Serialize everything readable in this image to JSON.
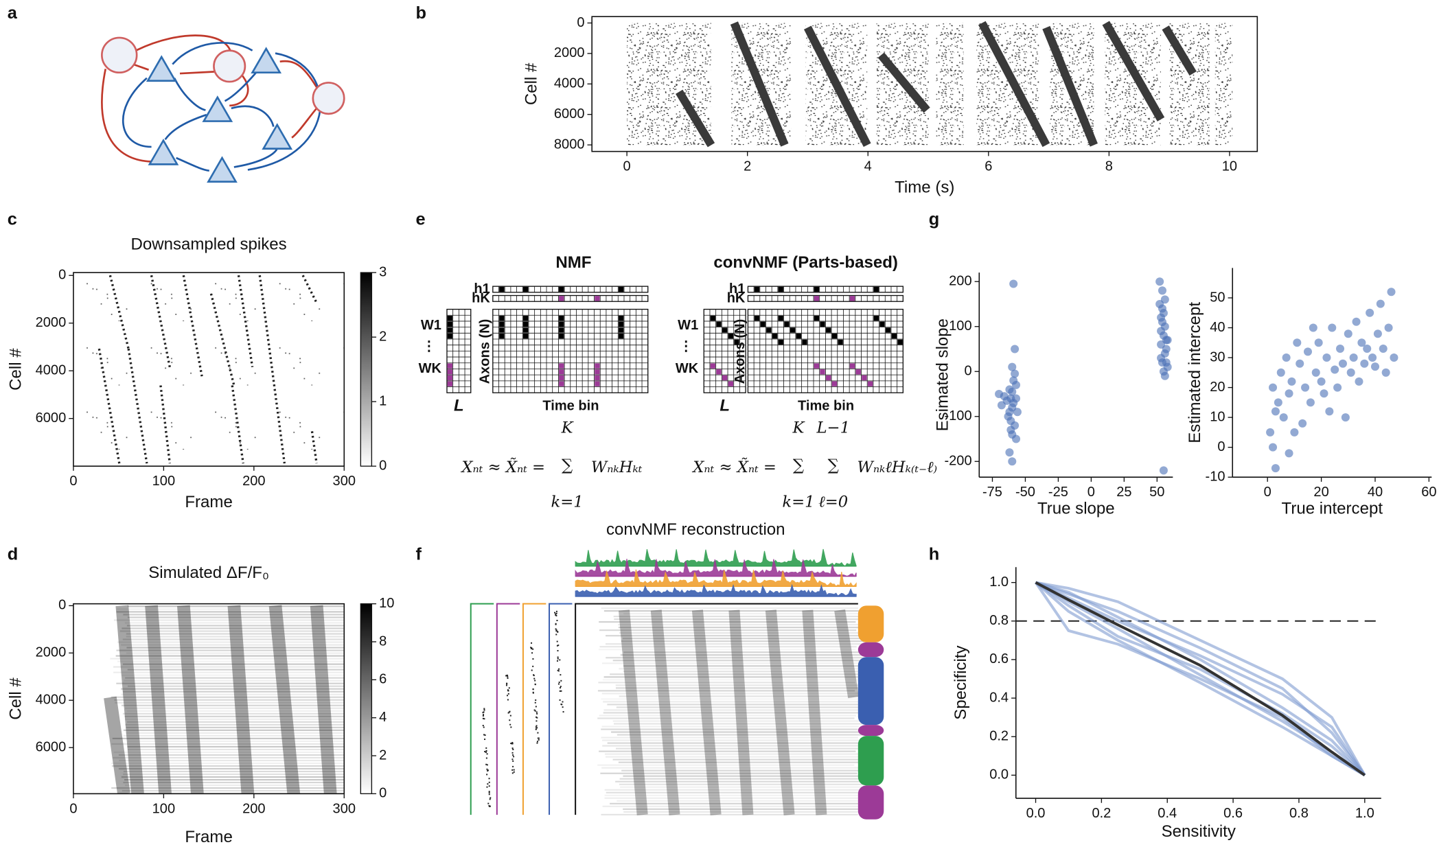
{
  "panel_labels": [
    "a",
    "b",
    "c",
    "d",
    "e",
    "f",
    "g",
    "h"
  ],
  "diagram_e": {
    "titles": [
      "NMF",
      "convNMF (Parts-based)"
    ],
    "h_labels": [
      "h1",
      "hK"
    ],
    "w_labels": [
      "W1",
      "⋮",
      "WK"
    ],
    "width_label": "L",
    "y_label": "Axons (N)",
    "x_label": "Time bin",
    "sum": "∑",
    "formulas": [
      {
        "lhs": "Xₙₜ ≈ X̃ₙₜ =",
        "upper": [
          "K"
        ],
        "lower": [
          "k=1"
        ],
        "rhs": "WₙₖHₖₜ"
      },
      {
        "lhs": "Xₙₜ ≈ X̃ₙₜ =",
        "upper": [
          "K",
          "L−1"
        ],
        "lower": [
          "k=1",
          "ℓ=0"
        ],
        "rhs": "WₙₖℓHₖ₍ₜ₋ℓ₎"
      }
    ]
  },
  "diagram_f": {
    "title": "convNMF reconstruction"
  },
  "chart_data": [
    {
      "type": "raster",
      "xlabel": "Time (s)",
      "ylabel": "Cell #",
      "xlim": [
        -0.58,
        10.46
      ],
      "ylim": [
        -420,
        8430
      ],
      "y_inverted": true,
      "xticks": [
        0,
        2,
        4,
        6,
        8,
        10
      ],
      "yticks": [
        0,
        2000,
        4000,
        6000,
        8000
      ]
    },
    {
      "type": "raster",
      "title": "Downsampled spikes",
      "xlabel": "Frame",
      "ylabel": "Cell #",
      "xlim": [
        0,
        300
      ],
      "ylim": [
        -120,
        8000
      ],
      "y_inverted": true,
      "xticks": [
        0,
        100,
        200,
        300
      ],
      "yticks": [
        0,
        2000,
        4000,
        6000
      ],
      "colorbar": {
        "lim": [
          0,
          3
        ],
        "ticks": [
          0,
          1,
          2,
          3
        ]
      }
    },
    {
      "type": "raster",
      "title": "Simulated ΔF/F₀",
      "xlabel": "Frame",
      "ylabel": "Cell #",
      "xlim": [
        0,
        300
      ],
      "ylim": [
        -80,
        7950
      ],
      "y_inverted": true,
      "xticks": [
        0,
        100,
        200,
        300
      ],
      "yticks": [
        0,
        2000,
        4000,
        6000
      ],
      "colorbar": {
        "lim": [
          0,
          10
        ],
        "ticks": [
          0,
          2,
          4,
          6,
          8,
          10
        ]
      }
    },
    {
      "type": "scatter",
      "xlabel": "True slope",
      "ylabel": "Esimated slope",
      "color": "#4a6fb5",
      "xlim": [
        -85,
        62
      ],
      "ylim": [
        -235,
        220
      ],
      "xticks": [
        -75,
        -50,
        -25,
        0,
        25,
        50
      ],
      "yticks": [
        -200,
        -100,
        0,
        100,
        200
      ],
      "x": [
        -62,
        -60,
        -58,
        -61,
        -59,
        -57,
        -63,
        -60,
        -58,
        -60,
        -62,
        -56,
        -59,
        -61,
        -57,
        -64,
        -66,
        -70,
        -68,
        -60,
        -58,
        -62,
        -59,
        -57,
        -61,
        -60,
        52,
        54,
        55,
        53,
        56,
        57,
        55,
        53,
        54,
        56,
        57,
        52,
        55,
        53,
        58,
        56,
        54,
        57,
        55,
        53,
        56,
        58,
        54
      ],
      "values": [
        -40,
        -80,
        -120,
        -60,
        -20,
        -150,
        -100,
        10,
        50,
        -200,
        -180,
        -90,
        -70,
        -110,
        -30,
        -65,
        -55,
        -50,
        -75,
        -140,
        -5,
        -90,
        195,
        -60,
        -130,
        -45,
        150,
        110,
        80,
        60,
        40,
        20,
        0,
        120,
        180,
        100,
        70,
        200,
        130,
        90,
        10,
        -10,
        140,
        50,
        -220,
        30,
        160,
        70,
        20
      ]
    },
    {
      "type": "scatter",
      "xlabel": "True intercept",
      "ylabel": "Estimated intercept",
      "color": "#4a6fb5",
      "xlim": [
        -13,
        61
      ],
      "ylim": [
        -10,
        60
      ],
      "xticks": [
        0,
        20,
        40,
        60
      ],
      "yticks": [
        -10,
        0,
        10,
        20,
        30,
        40,
        50
      ],
      "x": [
        1,
        2,
        3,
        4,
        5,
        6,
        7,
        8,
        3,
        9,
        10,
        12,
        14,
        15,
        16,
        18,
        19,
        20,
        21,
        22,
        24,
        25,
        26,
        27,
        28,
        29,
        30,
        31,
        32,
        33,
        34,
        35,
        36,
        37,
        38,
        39,
        40,
        41,
        42,
        43,
        44,
        45,
        46,
        47,
        2,
        8,
        13,
        17,
        23,
        11
      ],
      "values": [
        5,
        20,
        -7,
        15,
        25,
        10,
        30,
        18,
        12,
        22,
        5,
        28,
        20,
        32,
        15,
        25,
        35,
        22,
        18,
        30,
        40,
        26,
        20,
        33,
        28,
        10,
        38,
        25,
        30,
        42,
        22,
        35,
        28,
        33,
        45,
        30,
        27,
        38,
        48,
        33,
        25,
        40,
        52,
        30,
        0,
        -2,
        8,
        40,
        12,
        35
      ]
    },
    {
      "type": "line",
      "xlabel": "Sensitivity",
      "ylabel": "Specificity",
      "xlim": [
        -0.06,
        1.05
      ],
      "ylim": [
        -0.12,
        1.08
      ],
      "hline": 0.8,
      "xticks": [
        {
          "value": 0,
          "label": "0.0"
        },
        {
          "value": 0.2,
          "label": "0.2"
        },
        {
          "value": 0.4,
          "label": "0.4"
        },
        {
          "value": 0.6,
          "label": "0.6"
        },
        {
          "value": 0.8,
          "label": "0.8"
        },
        {
          "value": 1,
          "label": "1.0"
        }
      ],
      "yticks": [
        {
          "value": 0,
          "label": "0.0"
        },
        {
          "value": 0.2,
          "label": "0.2"
        },
        {
          "value": 0.4,
          "label": "0.4"
        },
        {
          "value": 0.6,
          "label": "0.6"
        },
        {
          "value": 0.8,
          "label": "0.8"
        },
        {
          "value": 1,
          "label": "1.0"
        }
      ],
      "x": [
        0,
        0.1,
        0.25,
        0.5,
        0.75,
        0.9,
        1.0
      ],
      "series": [
        {
          "color": "#7f9bd0",
          "values": [
            1,
            0.95,
            0.82,
            0.6,
            0.35,
            0.18,
            0
          ]
        },
        {
          "color": "#7f9bd0",
          "values": [
            1,
            0.9,
            0.76,
            0.52,
            0.28,
            0.12,
            0
          ]
        },
        {
          "color": "#7f9bd0",
          "values": [
            1,
            0.92,
            0.8,
            0.62,
            0.42,
            0.25,
            0
          ]
        },
        {
          "color": "#7f9bd0",
          "values": [
            1,
            0.85,
            0.7,
            0.48,
            0.25,
            0.1,
            0
          ]
        },
        {
          "color": "#7f9bd0",
          "values": [
            1,
            0.97,
            0.9,
            0.7,
            0.5,
            0.3,
            0
          ]
        },
        {
          "color": "#7f9bd0",
          "values": [
            1,
            0.88,
            0.72,
            0.55,
            0.32,
            0.15,
            0
          ]
        },
        {
          "color": "#7f9bd0",
          "values": [
            1,
            0.75,
            0.68,
            0.5,
            0.3,
            0.1,
            0
          ]
        },
        {
          "color": "#7f9bd0",
          "values": [
            1,
            0.94,
            0.85,
            0.66,
            0.45,
            0.22,
            0
          ]
        },
        {
          "color": "#333333",
          "values": [
            1,
            0.91,
            0.78,
            0.57,
            0.31,
            0.12,
            0
          ]
        }
      ]
    }
  ]
}
